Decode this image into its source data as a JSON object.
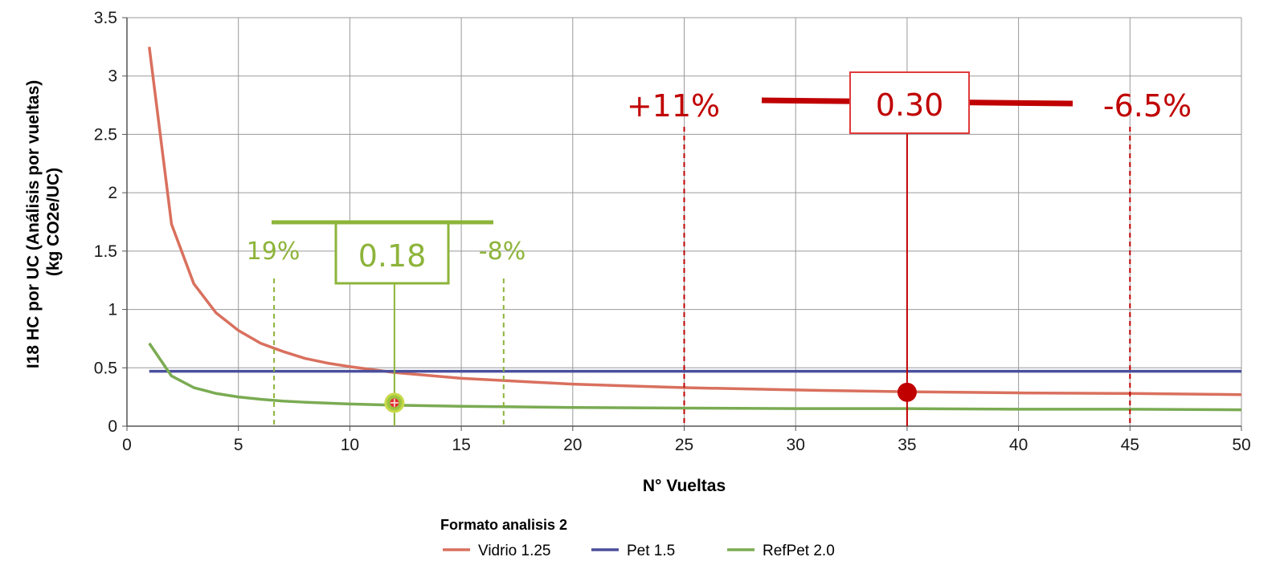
{
  "chart_data": {
    "type": "line",
    "xlabel": "N° Vueltas",
    "ylabel_line1": "I18 HC por UC (Análisis por vueltas)",
    "ylabel_line2": "(kg CO2e/UC)",
    "xlim": [
      0,
      50
    ],
    "ylim": [
      0,
      3.5
    ],
    "x_ticks": [
      0,
      5,
      10,
      15,
      20,
      25,
      30,
      35,
      40,
      45,
      50
    ],
    "y_ticks": [
      0,
      0.5,
      1,
      1.5,
      2,
      2.5,
      3,
      3.5
    ],
    "y_tick_labels": [
      "0",
      "0.5",
      "1",
      "1.5",
      "2",
      "2.5",
      "3",
      "3.5"
    ],
    "grid": true,
    "legend": {
      "title": "Formato analisis 2",
      "placement": "bottom-center"
    },
    "series": [
      {
        "name": "Vidrio 1.25",
        "color": "#d9705e",
        "x": [
          1,
          2,
          3,
          4,
          5,
          6,
          7,
          8,
          9,
          10,
          12,
          15,
          20,
          25,
          30,
          35,
          40,
          45,
          50
        ],
        "y": [
          3.25,
          1.73,
          1.22,
          0.97,
          0.82,
          0.71,
          0.64,
          0.58,
          0.54,
          0.51,
          0.46,
          0.41,
          0.36,
          0.33,
          0.31,
          0.295,
          0.285,
          0.28,
          0.27
        ]
      },
      {
        "name": "Pet 1.5",
        "color": "#4a4f9c",
        "x": [
          1,
          50
        ],
        "y": [
          0.47,
          0.47
        ]
      },
      {
        "name": "RefPet 2.0",
        "color": "#7aab52",
        "x": [
          1,
          2,
          3,
          4,
          5,
          6,
          7,
          8,
          10,
          12,
          15,
          20,
          25,
          30,
          35,
          40,
          45,
          50
        ],
        "y": [
          0.71,
          0.43,
          0.33,
          0.28,
          0.25,
          0.23,
          0.215,
          0.205,
          0.19,
          0.18,
          0.17,
          0.16,
          0.155,
          0.15,
          0.15,
          0.145,
          0.145,
          0.14
        ]
      }
    ],
    "annotations": {
      "red": {
        "value_label": "0.30",
        "left_label": "+11%",
        "right_label": "-6.5%",
        "color": "#c00000",
        "point": {
          "x": 35,
          "y": 0.29
        },
        "dashed_x": [
          25,
          45
        ]
      },
      "green": {
        "value_label": "0.18",
        "left_label": "19%",
        "right_label": "-8%",
        "color": "#8db43a",
        "point": {
          "x": 12,
          "y": 0.2
        },
        "dashed_x": [
          6.6,
          16.9
        ]
      }
    }
  }
}
